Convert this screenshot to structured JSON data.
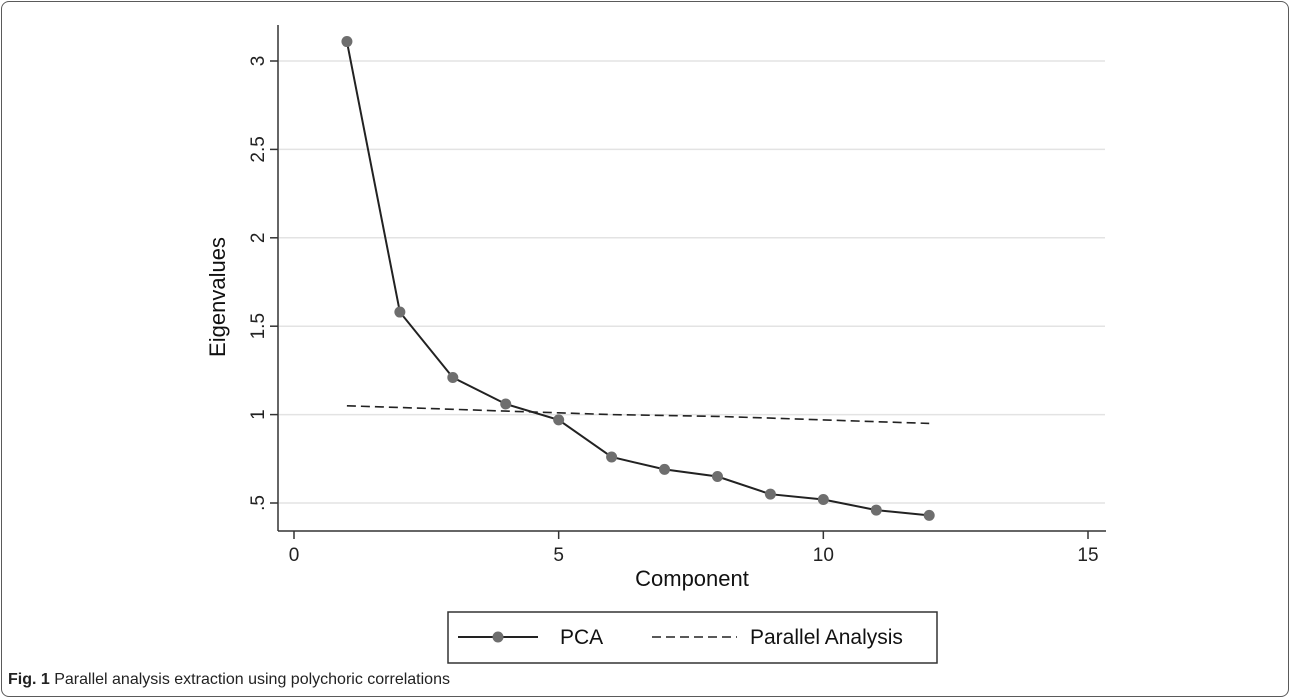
{
  "caption": {
    "label": "Fig. 1",
    "text": " Parallel analysis extraction using polychoric correlations"
  },
  "chart_data": {
    "type": "line",
    "xlabel": "Component",
    "ylabel": "Eigenvalues",
    "xlim": [
      0,
      15
    ],
    "ylim": [
      0.5,
      3
    ],
    "x_ticks": [
      0,
      5,
      10,
      15
    ],
    "x_tick_labels": [
      "0",
      "5",
      "10",
      "15"
    ],
    "y_ticks": [
      0.5,
      1,
      1.5,
      2,
      2.5,
      3
    ],
    "y_tick_labels": [
      ".5",
      "1",
      "1.5",
      "2",
      "2.5",
      "3"
    ],
    "grid": "horizontal",
    "legend_position": "bottom",
    "series": [
      {
        "name": "PCA",
        "style": "solid-with-markers",
        "color": "#222222",
        "marker_color": "#6e6e6e",
        "x": [
          1,
          2,
          3,
          4,
          5,
          6,
          7,
          8,
          9,
          10,
          11,
          12
        ],
        "values": [
          3.11,
          1.58,
          1.21,
          1.06,
          0.97,
          0.76,
          0.69,
          0.65,
          0.55,
          0.52,
          0.46,
          0.43
        ]
      },
      {
        "name": "Parallel Analysis",
        "style": "dashed",
        "color": "#222222",
        "x": [
          1,
          2,
          3,
          4,
          5,
          6,
          7,
          8,
          9,
          10,
          11,
          12
        ],
        "values": [
          1.05,
          1.04,
          1.03,
          1.02,
          1.01,
          1.0,
          0.995,
          0.99,
          0.98,
          0.97,
          0.96,
          0.95
        ]
      }
    ]
  }
}
